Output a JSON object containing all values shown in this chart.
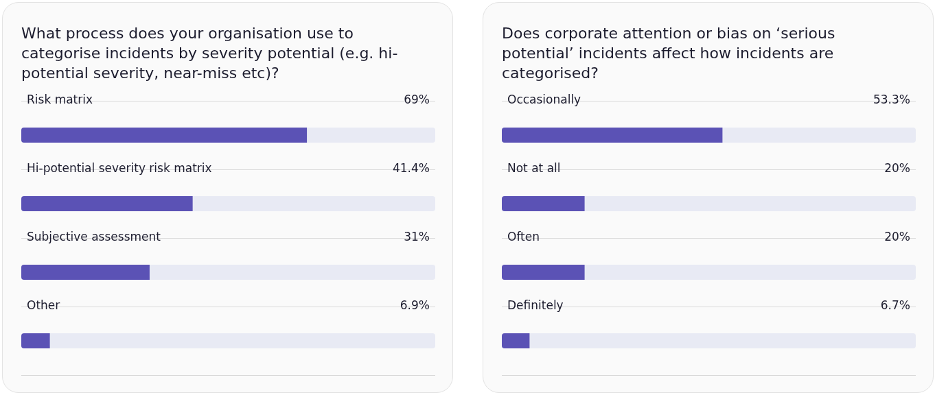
{
  "chart_data": [
    {
      "type": "bar",
      "orientation": "horizontal",
      "title": "What process does your organisation use to categorise incidents by severity potential (e.g. hi-potential severity, near-miss etc)?",
      "categories": [
        "Risk matrix",
        "Hi-potential severity risk matrix",
        "Subjective assessment",
        "Other"
      ],
      "values": [
        69,
        41.4,
        31,
        6.9
      ],
      "value_labels": [
        "69%",
        "41.4%",
        "31%",
        "6.9%"
      ],
      "color": "#5b52b5",
      "xlim": [
        0,
        100
      ],
      "grid": "y",
      "tick_labels": "y"
    },
    {
      "type": "bar",
      "orientation": "horizontal",
      "title": "Does corporate attention or bias on ‘serious potential’ incidents affect how incidents are categorised?",
      "categories": [
        "Occasionally",
        "Not at all",
        "Often",
        "Definitely"
      ],
      "values": [
        53.3,
        20,
        20,
        6.7
      ],
      "value_labels": [
        "53.3%",
        "20%",
        "20%",
        "6.7%"
      ],
      "color": "#5b52b5",
      "xlim": [
        0,
        100
      ],
      "grid": "y",
      "tick_labels": "y"
    }
  ]
}
